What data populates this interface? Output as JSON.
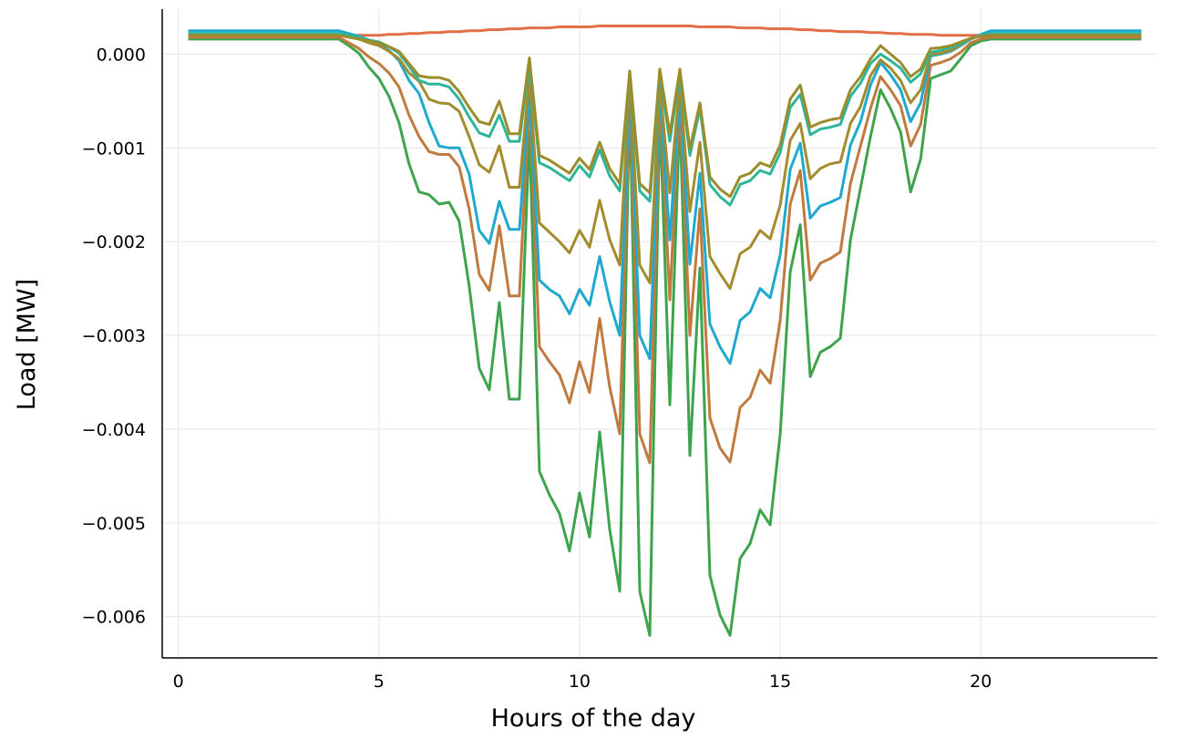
{
  "chart_data": {
    "type": "line",
    "title": "",
    "xlabel": "Hours of the day",
    "ylabel": "Load [MW]",
    "xlim": [
      -0.4,
      24.4
    ],
    "ylim": [
      -0.00644,
      0.00048
    ],
    "grid": true,
    "legend": "none",
    "x_ticks": [
      0,
      5,
      10,
      15,
      20
    ],
    "x_tick_labels": [
      "0",
      "5",
      "10",
      "15",
      "20"
    ],
    "y_ticks": [
      0,
      -0.001,
      -0.002,
      -0.003,
      -0.004,
      -0.005,
      -0.006
    ],
    "y_tick_labels": [
      "0.000",
      "−0.001",
      "−0.002",
      "−0.003",
      "−0.004",
      "−0.005",
      "−0.006"
    ],
    "x": [
      0.25,
      0.5,
      0.75,
      1.0,
      1.25,
      1.5,
      1.75,
      2.0,
      2.25,
      2.5,
      2.75,
      3.0,
      3.25,
      3.5,
      3.75,
      4.0,
      4.25,
      4.5,
      4.75,
      5.0,
      5.25,
      5.5,
      5.75,
      6.0,
      6.25,
      6.5,
      6.75,
      7.0,
      7.25,
      7.5,
      7.75,
      8.0,
      8.25,
      8.5,
      8.75,
      9.0,
      9.25,
      9.5,
      9.75,
      10.0,
      10.25,
      10.5,
      10.75,
      11.0,
      11.25,
      11.5,
      11.75,
      12.0,
      12.25,
      12.5,
      12.75,
      13.0,
      13.25,
      13.5,
      13.75,
      14.0,
      14.25,
      14.5,
      14.75,
      15.0,
      15.25,
      15.5,
      15.75,
      16.0,
      16.25,
      16.5,
      16.75,
      17.0,
      17.25,
      17.5,
      17.75,
      18.0,
      18.25,
      18.5,
      18.75,
      19.0,
      19.25,
      19.5,
      19.75,
      20.0,
      20.25,
      20.5,
      20.75,
      21.0,
      21.25,
      21.5,
      21.75,
      22.0,
      22.25,
      22.5,
      22.75,
      23.0,
      23.25,
      23.5,
      23.75,
      24.0
    ],
    "series": [
      {
        "color": "#e26f46",
        "values": [
          0.00019,
          0.00019,
          0.00019,
          0.00019,
          0.00019,
          0.00019,
          0.00019,
          0.00019,
          0.00019,
          0.00019,
          0.00019,
          0.00019,
          0.00019,
          0.00019,
          0.00019,
          0.00019,
          0.0002,
          0.0002,
          0.0002,
          0.0002,
          0.00021,
          0.00021,
          0.00022,
          0.00022,
          0.00023,
          0.00023,
          0.00024,
          0.00024,
          0.00025,
          0.00025,
          0.00026,
          0.00026,
          0.00027,
          0.00027,
          0.00028,
          0.00028,
          0.00028,
          0.00029,
          0.00029,
          0.00029,
          0.00029,
          0.0003,
          0.0003,
          0.0003,
          0.0003,
          0.0003,
          0.0003,
          0.0003,
          0.0003,
          0.0003,
          0.0003,
          0.00029,
          0.00029,
          0.00029,
          0.00029,
          0.00028,
          0.00028,
          0.00028,
          0.00027,
          0.00027,
          0.00027,
          0.00026,
          0.00026,
          0.00025,
          0.00025,
          0.00024,
          0.00024,
          0.00024,
          0.00023,
          0.00023,
          0.00022,
          0.00022,
          0.00021,
          0.00021,
          0.00021,
          0.0002,
          0.0002,
          0.0002,
          0.0002,
          0.0002,
          0.0002,
          0.0002,
          0.0002,
          0.0002,
          0.0002,
          0.0002,
          0.0002,
          0.0002,
          0.0002,
          0.0002,
          0.0002,
          0.0002,
          0.0002,
          0.0002,
          0.0002,
          0.0002
        ]
      },
      {
        "color": "#3da44d",
        "values": [
          0.00016,
          0.00016,
          0.00016,
          0.00016,
          0.00016,
          0.00016,
          0.00016,
          0.00016,
          0.00016,
          0.00016,
          0.00016,
          0.00016,
          0.00016,
          0.00016,
          0.00016,
          0.00016,
          9e-05,
          1e-05,
          -0.00014,
          -0.00026,
          -0.00045,
          -0.00073,
          -0.00117,
          -0.00147,
          -0.0015,
          -0.0016,
          -0.00158,
          -0.00178,
          -0.00247,
          -0.00335,
          -0.00358,
          -0.00265,
          -0.00368,
          -0.00368,
          -0.00082,
          -0.00445,
          -0.0047,
          -0.0049,
          -0.0053,
          -0.00468,
          -0.00515,
          -0.00403,
          -0.00507,
          -0.00573,
          -0.00042,
          -0.00573,
          -0.0062,
          -0.00062,
          -0.00374,
          -0.00062,
          -0.00428,
          -0.00228,
          -0.00556,
          -0.00598,
          -0.0062,
          -0.00538,
          -0.00522,
          -0.00486,
          -0.00502,
          -0.00405,
          -0.00232,
          -0.00182,
          -0.00344,
          -0.00318,
          -0.00312,
          -0.00303,
          -0.00198,
          -0.00143,
          -0.00088,
          -0.00038,
          -0.00058,
          -0.00083,
          -0.00147,
          -0.00112,
          -0.00026,
          -0.00022,
          -0.00018,
          -5e-05,
          9e-05,
          0.00014,
          0.00016,
          0.00016,
          0.00016,
          0.00016,
          0.00016,
          0.00016,
          0.00016,
          0.00016,
          0.00016,
          0.00016,
          0.00016,
          0.00016,
          0.00016,
          0.00016,
          0.00016,
          0.00016
        ]
      },
      {
        "color": "#c07a3d",
        "values": [
          0.00018,
          0.00018,
          0.00018,
          0.00018,
          0.00018,
          0.00018,
          0.00018,
          0.00018,
          0.00018,
          0.00018,
          0.00018,
          0.00018,
          0.00018,
          0.00018,
          0.00018,
          0.00018,
          0.00012,
          6e-05,
          -3e-05,
          -0.0001,
          -0.0002,
          -0.00035,
          -0.00065,
          -0.00088,
          -0.00104,
          -0.00107,
          -0.00107,
          -0.0012,
          -0.00165,
          -0.00235,
          -0.00252,
          -0.00183,
          -0.00258,
          -0.00258,
          -0.00045,
          -0.00312,
          -0.00328,
          -0.00342,
          -0.00372,
          -0.00328,
          -0.00361,
          -0.00282,
          -0.00355,
          -0.00405,
          -0.00038,
          -0.00405,
          -0.00436,
          -0.00045,
          -0.00262,
          -0.00045,
          -0.003,
          -0.00165,
          -0.00388,
          -0.0042,
          -0.00435,
          -0.00377,
          -0.00366,
          -0.00337,
          -0.00351,
          -0.00284,
          -0.0016,
          -0.00124,
          -0.00241,
          -0.00223,
          -0.00218,
          -0.00211,
          -0.00138,
          -0.00098,
          -0.00058,
          -0.00024,
          -0.00038,
          -0.00055,
          -0.00098,
          -0.00075,
          -0.00012,
          -9e-05,
          -5e-05,
          2e-05,
          0.00012,
          0.00016,
          0.00018,
          0.00018,
          0.00018,
          0.00018,
          0.00018,
          0.00018,
          0.00018,
          0.00018,
          0.00018,
          0.00018,
          0.00018,
          0.00018,
          0.00018,
          0.00018,
          0.00018,
          0.00018
        ]
      },
      {
        "color": "#20a9cf",
        "values": [
          0.00025,
          0.00025,
          0.00025,
          0.00025,
          0.00025,
          0.00025,
          0.00025,
          0.00025,
          0.00025,
          0.00025,
          0.00025,
          0.00025,
          0.00025,
          0.00025,
          0.00025,
          0.00025,
          0.00022,
          0.00019,
          0.00015,
          0.00011,
          4e-05,
          -7e-05,
          -0.00028,
          -0.00042,
          -0.00073,
          -0.00098,
          -0.001,
          -0.001,
          -0.00128,
          -0.00188,
          -0.00202,
          -0.00157,
          -0.00187,
          -0.00187,
          -0.00038,
          -0.00241,
          -0.00251,
          -0.00258,
          -0.00277,
          -0.00251,
          -0.00268,
          -0.00216,
          -0.00264,
          -0.003,
          -0.00035,
          -0.003,
          -0.00325,
          -0.00038,
          -0.00198,
          -0.00038,
          -0.00224,
          -0.00127,
          -0.00288,
          -0.00312,
          -0.0033,
          -0.00284,
          -0.00275,
          -0.0025,
          -0.0026,
          -0.00214,
          -0.00123,
          -0.00095,
          -0.00175,
          -0.00162,
          -0.00158,
          -0.00153,
          -0.00097,
          -0.00072,
          -0.00033,
          -9e-05,
          -0.00022,
          -0.00038,
          -0.00072,
          -0.00052,
          -2e-05,
          0.0,
          3e-05,
          9e-05,
          0.00016,
          0.00021,
          0.00025,
          0.00025,
          0.00025,
          0.00025,
          0.00025,
          0.00025,
          0.00025,
          0.00025,
          0.00025,
          0.00025,
          0.00025,
          0.00025,
          0.00025,
          0.00025,
          0.00025,
          0.00025
        ]
      },
      {
        "color": "#a48c2e",
        "values": [
          0.00021,
          0.00021,
          0.00021,
          0.00021,
          0.00021,
          0.00021,
          0.00021,
          0.00021,
          0.00021,
          0.00021,
          0.00021,
          0.00021,
          0.00021,
          0.00021,
          0.00021,
          0.00021,
          0.00019,
          0.00016,
          0.00012,
          9e-05,
          3e-05,
          -5e-05,
          -0.0002,
          -0.00029,
          -0.00048,
          -0.00052,
          -0.00053,
          -0.00061,
          -0.00088,
          -0.00118,
          -0.00126,
          -0.00098,
          -0.00142,
          -0.00142,
          -0.00025,
          -0.0018,
          -0.0019,
          -0.002,
          -0.00212,
          -0.00188,
          -0.00206,
          -0.00156,
          -0.00198,
          -0.00225,
          -0.00028,
          -0.00225,
          -0.00244,
          -0.00032,
          -0.00148,
          -0.00032,
          -0.00168,
          -0.00094,
          -0.00216,
          -0.00234,
          -0.0025,
          -0.00213,
          -0.00206,
          -0.00188,
          -0.00197,
          -0.00161,
          -0.00092,
          -0.00074,
          -0.00133,
          -0.00122,
          -0.00117,
          -0.00115,
          -0.00074,
          -0.00056,
          -0.00023,
          -6e-05,
          -0.00015,
          -0.00028,
          -0.00052,
          -0.00038,
          0.0,
          1e-05,
          4e-05,
          0.0001,
          0.00016,
          0.0002,
          0.00021,
          0.00021,
          0.00021,
          0.00021,
          0.00021,
          0.00021,
          0.00021,
          0.00021,
          0.00021,
          0.00021,
          0.00021,
          0.00021,
          0.00021,
          0.00021,
          0.00021,
          0.00021
        ]
      },
      {
        "color": "#2fb59a",
        "values": [
          0.00022,
          0.00022,
          0.00022,
          0.00022,
          0.00022,
          0.00022,
          0.00022,
          0.00022,
          0.00022,
          0.00022,
          0.00022,
          0.00022,
          0.00022,
          0.00022,
          0.00022,
          0.00022,
          0.0002,
          0.00018,
          0.00015,
          0.00013,
          8e-05,
          1e-05,
          -0.00013,
          -0.00028,
          -0.00032,
          -0.00032,
          -0.00035,
          -0.00048,
          -0.00067,
          -0.00084,
          -0.00088,
          -0.00065,
          -0.00093,
          -0.00093,
          -0.0001,
          -0.00116,
          -0.00121,
          -0.00128,
          -0.00135,
          -0.00119,
          -0.00131,
          -0.00102,
          -0.0013,
          -0.00146,
          -0.0002,
          -0.00146,
          -0.00157,
          -0.00022,
          -0.00093,
          -0.00022,
          -0.00108,
          -0.00058,
          -0.00139,
          -0.00152,
          -0.00161,
          -0.00139,
          -0.00135,
          -0.00124,
          -0.00128,
          -0.00105,
          -0.00057,
          -0.00043,
          -0.00086,
          -0.0008,
          -0.00078,
          -0.00075,
          -0.00045,
          -0.00031,
          -0.0001,
          0.0,
          -7e-05,
          -0.00015,
          -0.0003,
          -0.00021,
          2e-05,
          4e-05,
          7e-05,
          0.00011,
          0.00016,
          0.0002,
          0.00022,
          0.00022,
          0.00022,
          0.00022,
          0.00022,
          0.00022,
          0.00022,
          0.00022,
          0.00022,
          0.00022,
          0.00022,
          0.00022,
          0.00022,
          0.00022,
          0.00022,
          0.00022
        ]
      },
      {
        "color": "#9b8d2c",
        "values": [
          0.0002,
          0.0002,
          0.0002,
          0.0002,
          0.0002,
          0.0002,
          0.0002,
          0.0002,
          0.0002,
          0.0002,
          0.0002,
          0.0002,
          0.0002,
          0.0002,
          0.0002,
          0.0002,
          0.00018,
          0.00016,
          0.00014,
          0.00012,
          8e-05,
          3e-05,
          -0.0001,
          -0.00023,
          -0.00025,
          -0.00025,
          -0.00028,
          -0.0004,
          -0.00057,
          -0.00072,
          -0.00075,
          -0.0005,
          -0.00085,
          -0.00085,
          -4e-05,
          -0.00108,
          -0.00113,
          -0.0012,
          -0.00127,
          -0.00111,
          -0.00123,
          -0.00094,
          -0.00122,
          -0.00138,
          -0.00018,
          -0.00138,
          -0.00148,
          -0.00016,
          -0.00085,
          -0.00016,
          -0.00101,
          -0.00052,
          -0.00131,
          -0.00144,
          -0.00152,
          -0.00131,
          -0.00127,
          -0.00116,
          -0.0012,
          -0.00097,
          -0.00048,
          -0.00033,
          -0.00078,
          -0.00073,
          -0.0007,
          -0.00068,
          -0.00038,
          -0.00024,
          -5e-05,
          9e-05,
          0.0,
          -9e-05,
          -0.00024,
          -0.00016,
          6e-05,
          7e-05,
          9e-05,
          0.00013,
          0.00017,
          0.00019,
          0.0002,
          0.0002,
          0.0002,
          0.0002,
          0.0002,
          0.0002,
          0.0002,
          0.0002,
          0.0002,
          0.0002,
          0.0002,
          0.0002,
          0.0002,
          0.0002,
          0.0002,
          0.0002
        ]
      }
    ]
  }
}
